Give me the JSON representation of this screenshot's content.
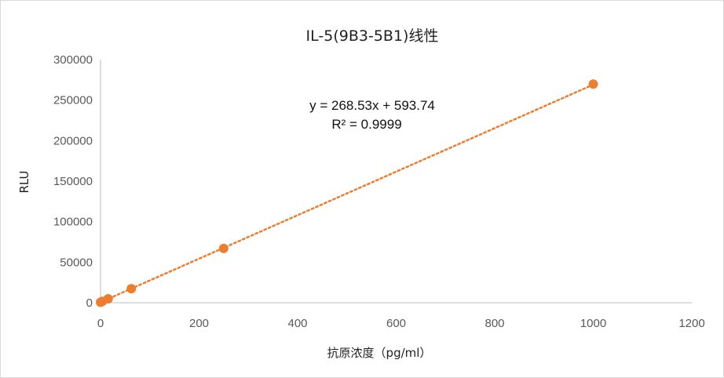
{
  "chart_data": {
    "type": "scatter",
    "title": "IL-5(9B3-5B1)线性",
    "xlabel": "抗原浓度（pg/ml）",
    "ylabel": "RLU",
    "xlim": [
      0,
      1200
    ],
    "ylim": [
      0,
      300000
    ],
    "x_ticks": [
      0,
      200,
      400,
      600,
      800,
      1000,
      1200
    ],
    "y_ticks": [
      0,
      50000,
      100000,
      150000,
      200000,
      250000,
      300000
    ],
    "series": [
      {
        "points": [
          {
            "x": 0,
            "y": 600
          },
          {
            "x": 3.9,
            "y": 1700
          },
          {
            "x": 15.6,
            "y": 4800
          },
          {
            "x": 62.5,
            "y": 17300
          },
          {
            "x": 250,
            "y": 67000
          },
          {
            "x": 1000,
            "y": 269700
          }
        ],
        "color": "#ED7D31",
        "trendline": {
          "type": "linear",
          "slope": 268.53,
          "intercept": 593.74,
          "style": "dotted"
        }
      }
    ],
    "equation_text": "y = 268.53x + 593.74",
    "r2_text": "R² = 0.9999",
    "grid": false,
    "legend": "none"
  }
}
